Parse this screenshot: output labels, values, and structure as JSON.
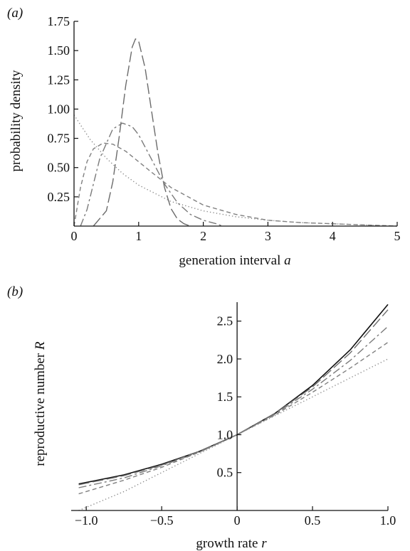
{
  "chart_data": [
    {
      "panel": "(a)",
      "type": "line",
      "xlabel": "generation interval",
      "xlabel_var": "a",
      "ylabel": "probability density",
      "xlim": [
        0,
        5
      ],
      "ylim": [
        0,
        1.75
      ],
      "x_ticks": [
        "0",
        "1",
        "2",
        "3",
        "4",
        "5"
      ],
      "y_ticks": [
        "0.25",
        "0.50",
        "0.75",
        "1.00",
        "1.25",
        "1.50",
        "1.75"
      ],
      "grid": false,
      "legend": "none",
      "series": [
        {
          "style": "long-dash",
          "x": [
            0.3,
            0.5,
            0.6,
            0.7,
            0.8,
            0.9,
            0.95,
            1.0,
            1.1,
            1.2,
            1.3,
            1.4,
            1.5,
            1.6,
            1.7,
            1.8
          ],
          "y": [
            0.0,
            0.13,
            0.38,
            0.77,
            1.2,
            1.53,
            1.6,
            1.58,
            1.35,
            0.98,
            0.62,
            0.33,
            0.15,
            0.06,
            0.02,
            0.0
          ]
        },
        {
          "style": "dash-dot",
          "x": [
            0.1,
            0.2,
            0.4,
            0.6,
            0.75,
            0.9,
            1.0,
            1.2,
            1.4,
            1.6,
            1.8,
            2.0,
            2.2,
            2.3
          ],
          "y": [
            0.0,
            0.14,
            0.58,
            0.83,
            0.88,
            0.85,
            0.78,
            0.57,
            0.36,
            0.2,
            0.1,
            0.05,
            0.02,
            0.0
          ]
        },
        {
          "style": "short-dash",
          "x": [
            0.0,
            0.1,
            0.2,
            0.3,
            0.45,
            0.6,
            0.8,
            1.0,
            1.2,
            1.5,
            2.0,
            2.5,
            3.0,
            3.5,
            4.0,
            4.5,
            5.0
          ],
          "y": [
            0.0,
            0.33,
            0.55,
            0.66,
            0.71,
            0.7,
            0.64,
            0.55,
            0.46,
            0.33,
            0.18,
            0.1,
            0.05,
            0.03,
            0.02,
            0.01,
            0.0
          ]
        },
        {
          "style": "dotted",
          "x": [
            0.0,
            0.25,
            0.5,
            0.75,
            1.0,
            1.5,
            2.0,
            2.5,
            3.0,
            3.5,
            4.0,
            4.5,
            5.0
          ],
          "y": [
            0.95,
            0.74,
            0.58,
            0.45,
            0.35,
            0.21,
            0.13,
            0.08,
            0.05,
            0.03,
            0.02,
            0.01,
            0.0
          ]
        }
      ]
    },
    {
      "panel": "(b)",
      "type": "line",
      "xlabel": "growth rate",
      "xlabel_var": "r",
      "ylabel": "reproductive number",
      "ylabel_var": "R",
      "xlim": [
        -1.1,
        1.0
      ],
      "ylim": [
        0,
        2.75
      ],
      "x_ticks": [
        "−1.0",
        "−0.5",
        "0",
        "0.5",
        "1.0"
      ],
      "y_ticks": [
        "0.5",
        "1.0",
        "1.5",
        "2.0",
        "2.5"
      ],
      "grid": false,
      "legend": "none",
      "series": [
        {
          "style": "solid",
          "x": [
            -1.05,
            -0.75,
            -0.5,
            -0.25,
            0.0,
            0.25,
            0.5,
            0.75,
            1.0
          ],
          "y": [
            0.35,
            0.47,
            0.61,
            0.78,
            1.0,
            1.28,
            1.65,
            2.12,
            2.72
          ]
        },
        {
          "style": "long-dash",
          "x": [
            -1.05,
            -0.75,
            -0.5,
            -0.25,
            0.0,
            0.25,
            0.5,
            0.75,
            1.0
          ],
          "y": [
            0.34,
            0.46,
            0.6,
            0.78,
            1.0,
            1.28,
            1.63,
            2.08,
            2.65
          ]
        },
        {
          "style": "dash-dot",
          "x": [
            -1.05,
            -0.75,
            -0.5,
            -0.25,
            0.0,
            0.25,
            0.5,
            0.75,
            1.0
          ],
          "y": [
            0.3,
            0.43,
            0.59,
            0.77,
            1.0,
            1.27,
            1.6,
            1.98,
            2.43
          ]
        },
        {
          "style": "short-dash",
          "x": [
            -1.05,
            -0.75,
            -0.5,
            -0.25,
            0.0,
            0.25,
            0.5,
            0.75,
            1.0
          ],
          "y": [
            0.22,
            0.4,
            0.57,
            0.77,
            1.0,
            1.26,
            1.56,
            1.88,
            2.22
          ]
        },
        {
          "style": "dotted",
          "x": [
            -1.05,
            -0.75,
            -0.5,
            -0.25,
            0.0,
            0.25,
            0.5,
            0.75,
            1.0
          ],
          "y": [
            0.0,
            0.25,
            0.5,
            0.75,
            1.0,
            1.25,
            1.5,
            1.75,
            2.0
          ]
        }
      ]
    }
  ]
}
